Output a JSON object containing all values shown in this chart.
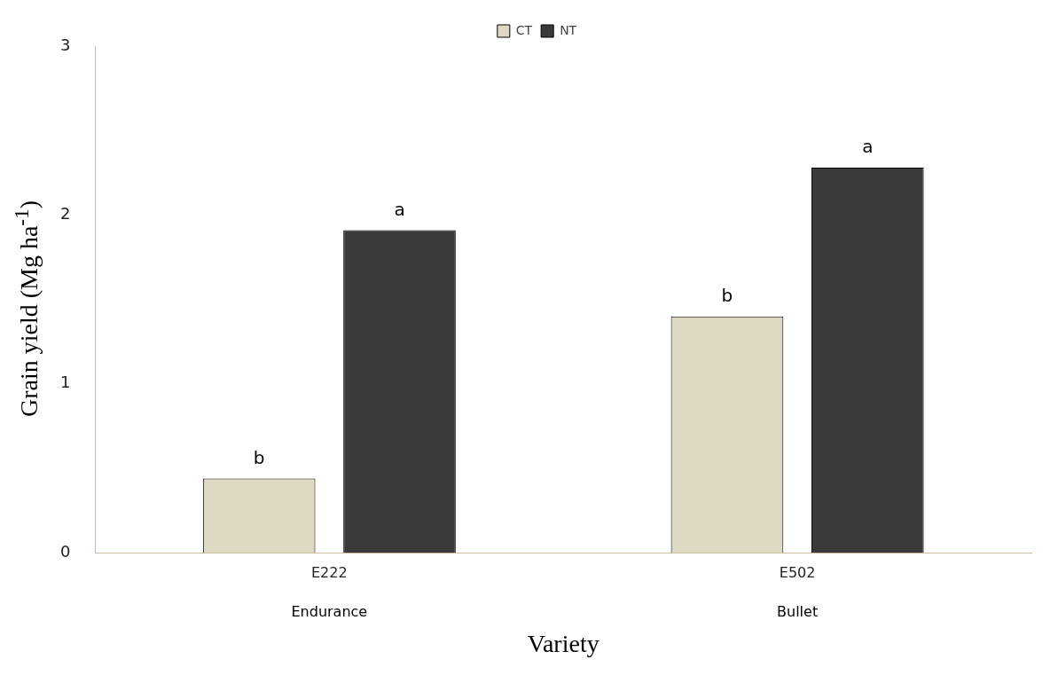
{
  "chart_data": {
    "type": "bar",
    "xlabel": "Variety",
    "ylabel": "Grain yield (Mg ha$^{-1}$)",
    "categories": [
      "E222",
      "E502"
    ],
    "series": [
      {
        "name": "CT",
        "color": "#ddd9c3",
        "values": [
          0.44,
          1.4
        ],
        "value_labels": [
          "b",
          "b"
        ]
      },
      {
        "name": "NT",
        "color": "#3a3a3a",
        "values": [
          1.91,
          2.28
        ],
        "value_labels": [
          "a",
          "a"
        ]
      }
    ],
    "annotations": [
      "Endurance",
      "Bullet"
    ],
    "ylim": [
      0,
      3
    ],
    "yticks": [
      0,
      1,
      2,
      3
    ],
    "grid": false,
    "legend": "top"
  }
}
